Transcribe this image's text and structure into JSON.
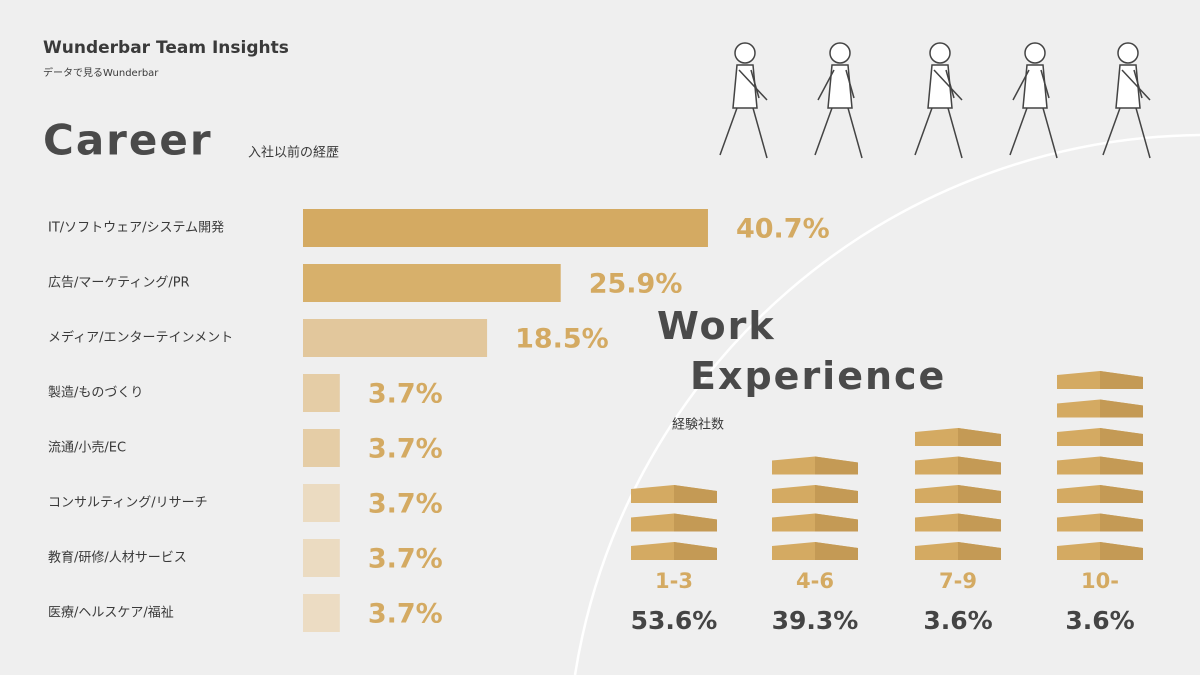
{
  "header": {
    "title": "Wunderbar Team Insights",
    "subtitle": "データで見るWunderbar"
  },
  "chart_data": [
    {
      "type": "bar",
      "title": "Career",
      "subtitle": "入社以前の経歴",
      "categories": [
        "IT/ソフトウェア/システム開発",
        "広告/マーケティング/PR",
        "メディア/エンターテインメント",
        "製造/ものづくり",
        "流通/小売/EC",
        "コンサルティング/リサーチ",
        "教育/研修/人材サービス",
        "医療/ヘルスケア/福祉"
      ],
      "values": [
        40.7,
        25.9,
        18.5,
        3.7,
        3.7,
        3.7,
        3.7,
        3.7
      ],
      "value_labels": [
        "40.7%",
        "25.9%",
        "18.5%",
        "3.7%",
        "3.7%",
        "3.7%",
        "3.7%",
        "3.7%"
      ],
      "colors": [
        "#d4aa62",
        "#d7b06b",
        "#e2c79c",
        "#e5cda6",
        "#e5cda6",
        "#ebdbc1",
        "#ebdbc1",
        "#ecdcc3"
      ]
    },
    {
      "type": "buildings",
      "title": "Work Experience",
      "subtitle": "経験社数",
      "categories": [
        "1-3",
        "4-6",
        "7-9",
        "10-"
      ],
      "values": [
        53.6,
        39.3,
        3.6,
        3.6
      ],
      "value_labels": [
        "53.6%",
        "39.3%",
        "3.6%",
        "3.6%"
      ],
      "color": "#d4aa62"
    }
  ]
}
